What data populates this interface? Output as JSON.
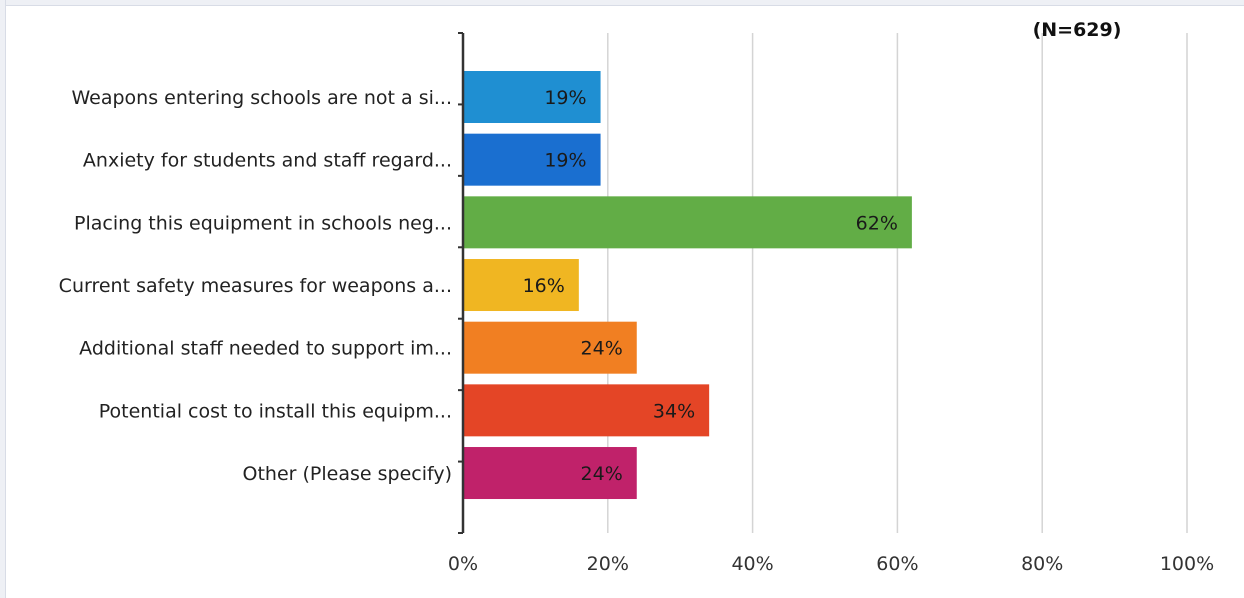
{
  "chart_data": {
    "type": "bar",
    "orientation": "horizontal",
    "annotation": "(N=629)",
    "categories": [
      "Weapons entering schools are not a si...",
      "Anxiety for students and staff regard...",
      "Placing this equipment in schools neg...",
      "Current safety measures for weapons a...",
      "Additional staff needed to support im...",
      "Potential cost to install this equipm...",
      "Other (Please specify)"
    ],
    "values": [
      19,
      19,
      62,
      16,
      24,
      34,
      24
    ],
    "value_labels": [
      "19%",
      "19%",
      "62%",
      "16%",
      "24%",
      "34%",
      "24%"
    ],
    "colors": [
      "#1f8fd2",
      "#1a6fd0",
      "#62ad46",
      "#f0b622",
      "#f17f22",
      "#e44526",
      "#c0226a"
    ],
    "label_colors": [
      "#1a1a1a",
      "#ffffff",
      "#1a1a1a",
      "#1a1a1a",
      "#1a1a1a",
      "#1a1a1a",
      "#1a1a1a"
    ],
    "xlim": [
      0,
      100
    ],
    "xticks": [
      0,
      20,
      40,
      60,
      80,
      100
    ],
    "xtick_labels": [
      "0%",
      "20%",
      "40%",
      "60%",
      "80%",
      "100%"
    ],
    "grid": "vertical",
    "title": "",
    "xlabel": "",
    "ylabel": ""
  }
}
